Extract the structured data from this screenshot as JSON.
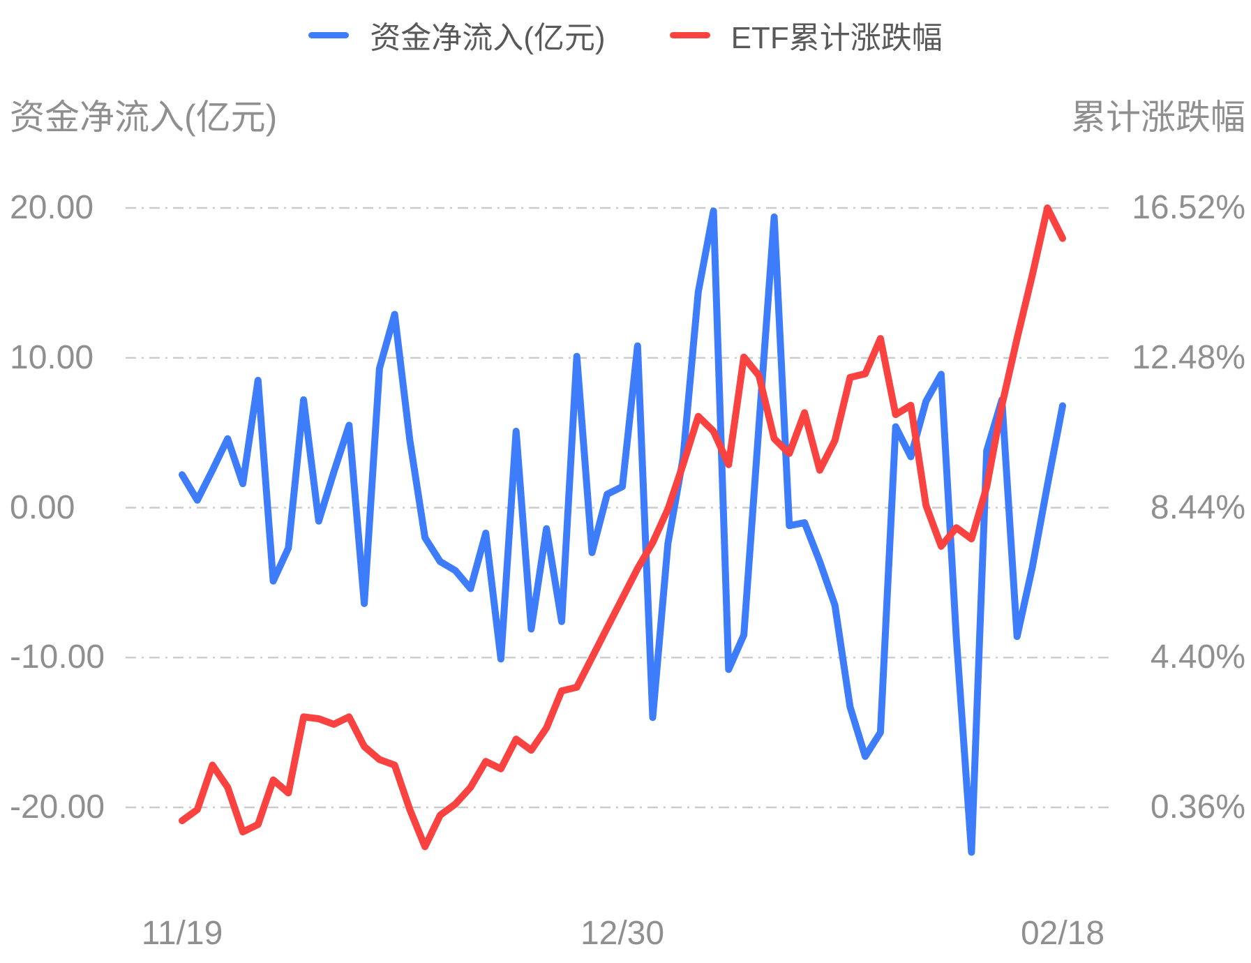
{
  "chart_data": {
    "type": "line",
    "title": "",
    "legend_position": "top-center",
    "grid": {
      "horizontal": true,
      "vertical": false,
      "color": "#cbcbcb",
      "style": "dash-dot"
    },
    "legend": [
      {
        "label": "资金净流入(亿元)",
        "color": "#3D7CFA"
      },
      {
        "label": "ETF累计涨跌幅",
        "color": "#FA4340"
      }
    ],
    "left_axis": {
      "title": "资金净流入(亿元)",
      "max": 20,
      "min": -20,
      "ticks": [
        "20.00",
        "10.00",
        "0.00",
        "-10.00",
        "-20.00"
      ]
    },
    "right_axis": {
      "title": "累计涨跌幅",
      "max": 16.52,
      "min": 0.36,
      "ticks": [
        "16.52%",
        "12.48%",
        "8.44%",
        "4.40%",
        "0.36%"
      ]
    },
    "x_axis": {
      "tick_labels": [
        "11/19",
        "12/30",
        "02/18"
      ],
      "tick_data_indices": [
        0,
        29,
        58
      ],
      "num_points": 59
    },
    "series": [
      {
        "name": "资金净流入(亿元)",
        "axis": "left",
        "color": "#3D7CFA",
        "values": [
          2.2,
          0.5,
          2.5,
          4.6,
          1.6,
          8.5,
          -4.9,
          -2.7,
          7.2,
          -0.9,
          2.4,
          5.5,
          -6.4,
          9.3,
          12.9,
          4.5,
          -2.0,
          -3.6,
          -4.2,
          -5.4,
          -1.7,
          -10.1,
          5.1,
          -8.1,
          -1.4,
          -7.6,
          10.1,
          -3.0,
          0.9,
          1.4,
          10.8,
          -14.0,
          -2.4,
          3.3,
          14.4,
          19.8,
          -10.8,
          -8.5,
          5.5,
          19.4,
          -1.2,
          -1.0,
          -3.6,
          -6.5,
          -13.3,
          -16.6,
          -15.0,
          5.4,
          3.4,
          7.1,
          8.9,
          -8.7,
          -23.0,
          3.8,
          7.2,
          -8.6,
          -4.0,
          1.5,
          6.8
        ]
      },
      {
        "name": "ETF累计涨跌幅",
        "axis": "right",
        "color": "#FA4340",
        "values": [
          0.0,
          0.3,
          1.5,
          0.9,
          -0.3,
          -0.1,
          1.1,
          0.75,
          2.8,
          2.75,
          2.6,
          2.8,
          2.0,
          1.65,
          1.5,
          0.3,
          -0.7,
          0.15,
          0.45,
          0.9,
          1.6,
          1.4,
          2.2,
          1.9,
          2.5,
          3.5,
          3.6,
          4.4,
          5.2,
          6.0,
          6.8,
          7.5,
          8.4,
          9.6,
          10.9,
          10.5,
          9.6,
          12.5,
          12.0,
          10.3,
          9.9,
          11.0,
          9.45,
          10.25,
          11.95,
          12.05,
          13.0,
          10.95,
          11.2,
          8.5,
          7.4,
          7.9,
          7.6,
          9.0,
          11.2,
          13.0,
          14.7,
          16.52,
          15.7
        ]
      }
    ]
  }
}
